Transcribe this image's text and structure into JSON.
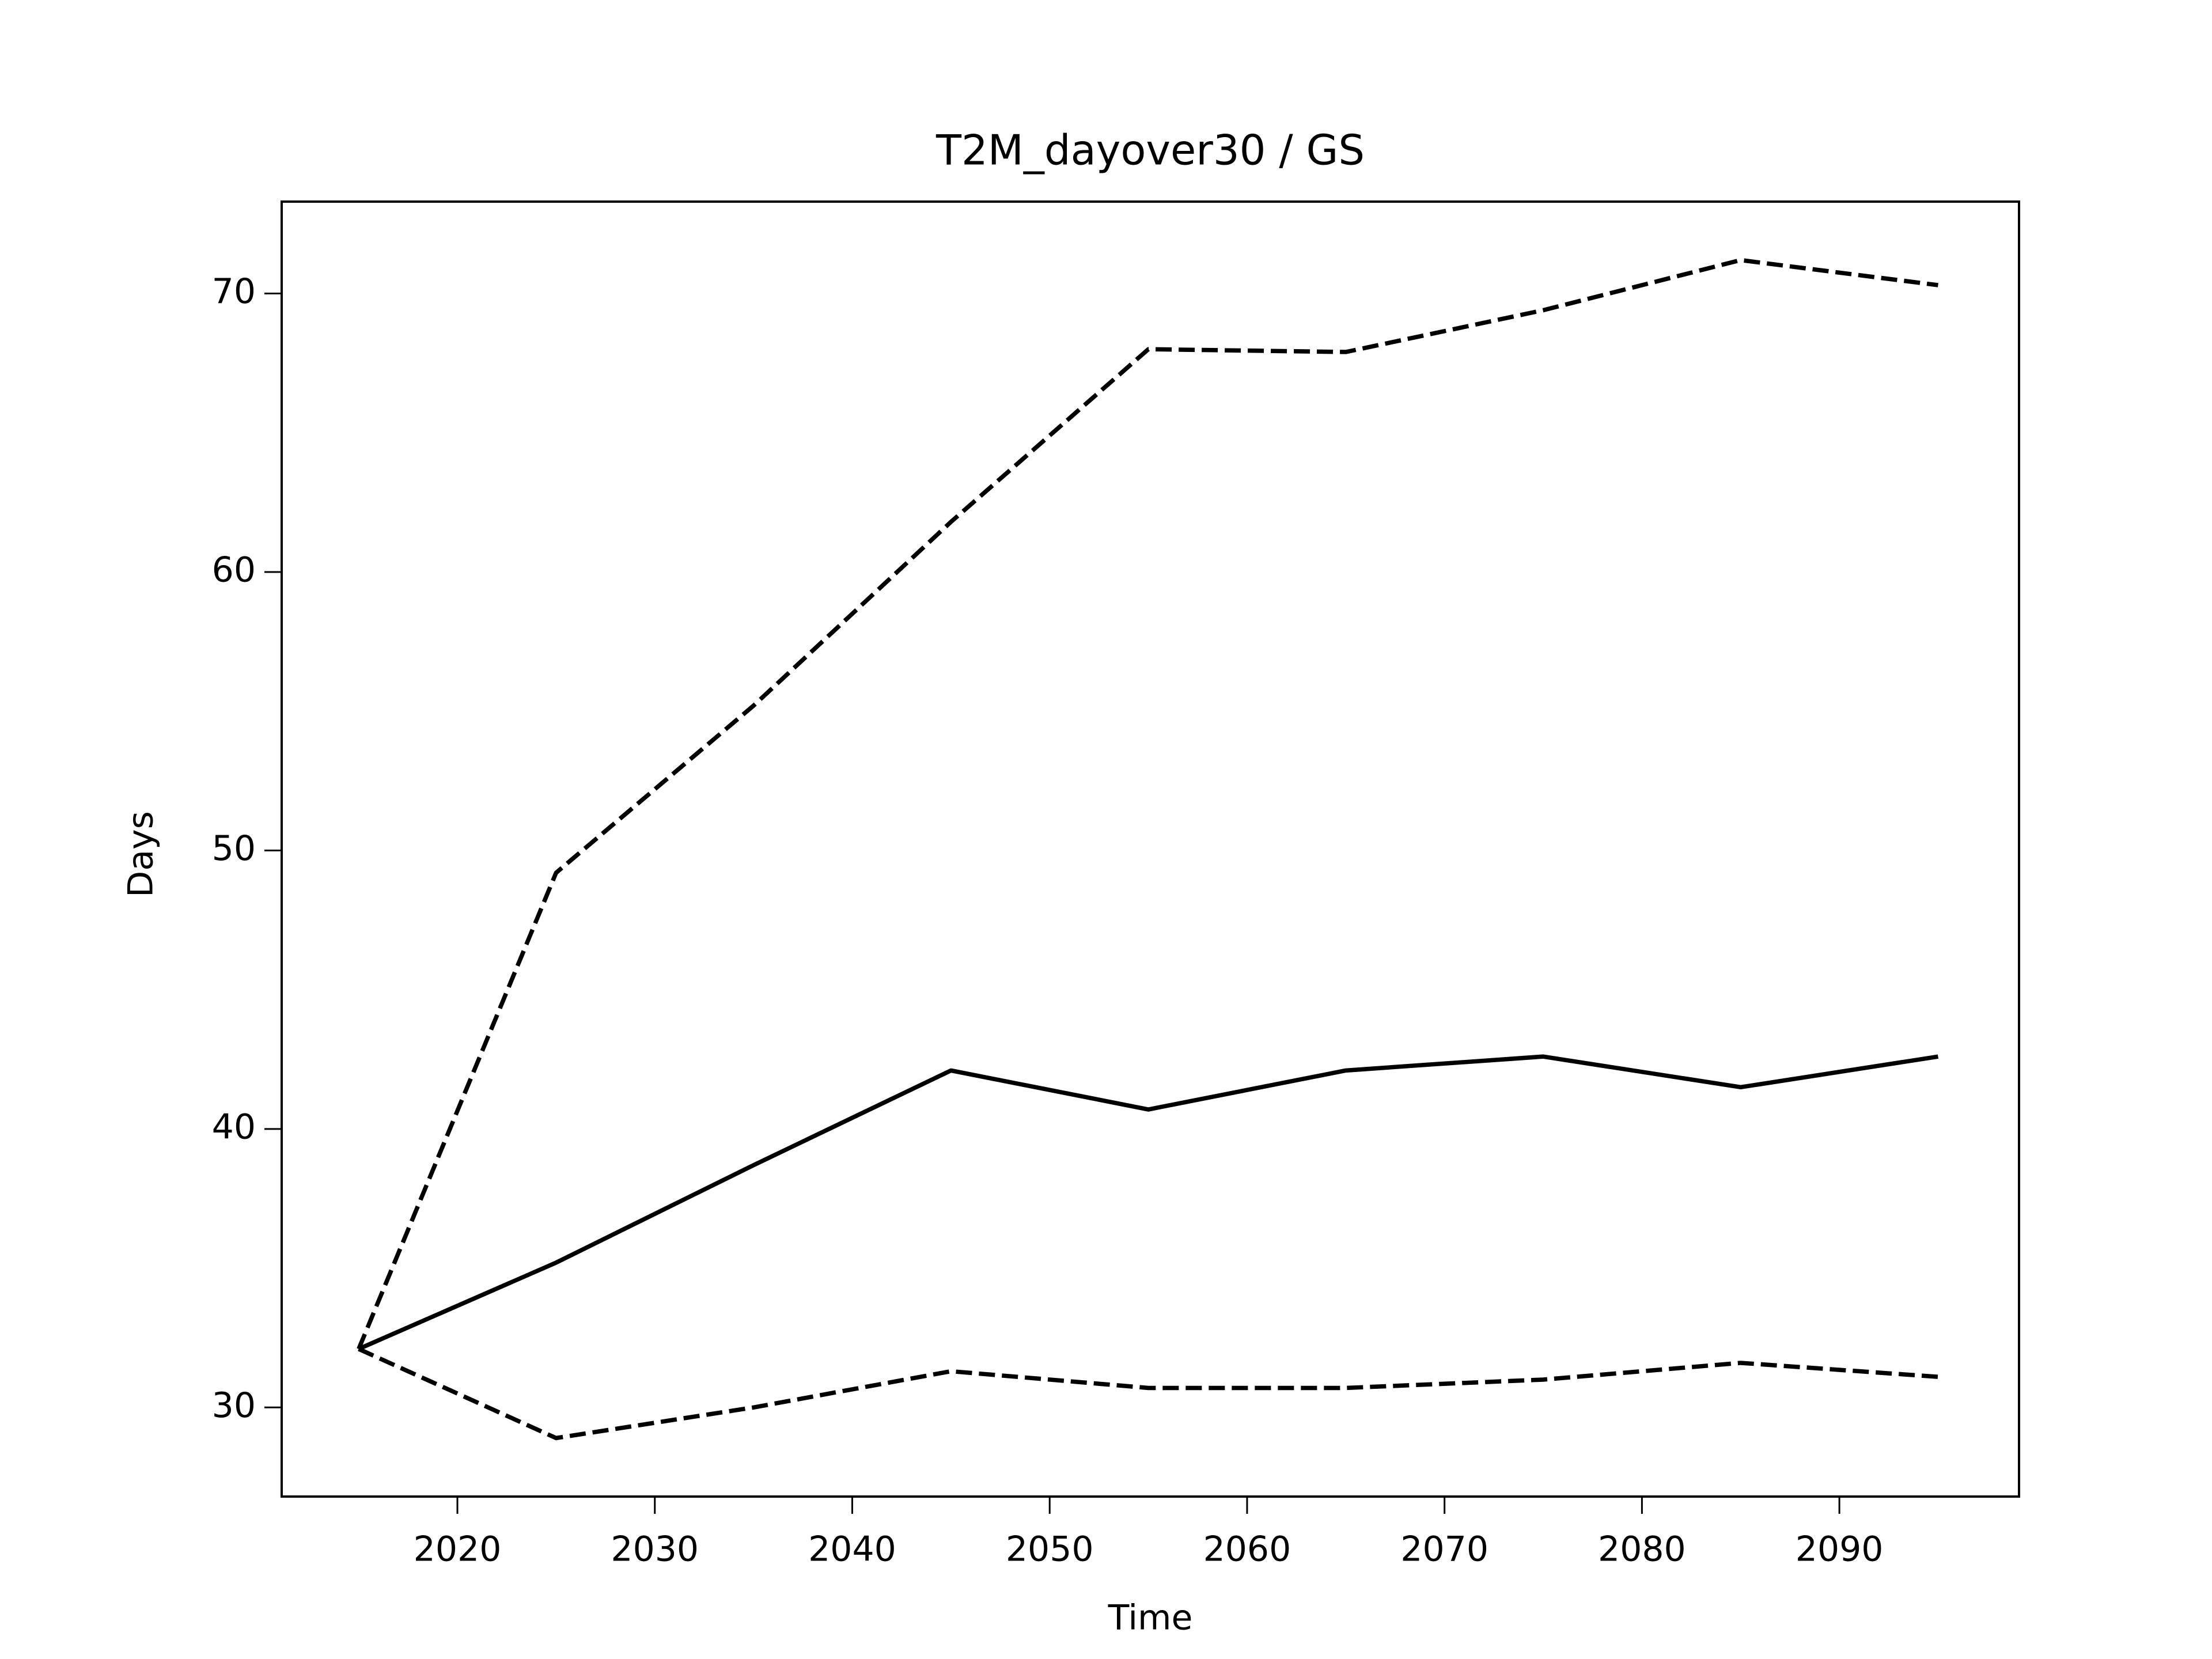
{
  "chart_data": {
    "type": "line",
    "title": "T2M_dayover30 / GS",
    "x_label": "Time",
    "y_label": "Days",
    "x": [
      2015,
      2025,
      2035,
      2045,
      2055,
      2065,
      2075,
      2085,
      2095
    ],
    "series": [
      {
        "color": "#000000",
        "linestyle": "solid",
        "values": [
          32.1,
          35.2,
          38.7,
          42.1,
          40.7,
          42.1,
          42.6,
          41.5,
          42.6
        ]
      },
      {
        "color": "#000000",
        "linestyle": "dashed",
        "values": [
          32.1,
          49.2,
          55.2,
          61.8,
          68.0,
          67.9,
          69.4,
          71.2,
          70.3
        ]
      },
      {
        "color": "#000000",
        "linestyle": "dashed",
        "values": [
          32.1,
          28.9,
          30.0,
          31.3,
          30.7,
          30.7,
          31.0,
          31.6,
          31.1
        ]
      }
    ],
    "xlim": [
      2011.1,
      2099.1
    ],
    "xticks": [
      2020,
      2030,
      2040,
      2050,
      2060,
      2070,
      2080,
      2090
    ],
    "ylim": [
      26.8,
      73.3
    ],
    "yticks": [
      30,
      40,
      50,
      60,
      70
    ],
    "grid": false
  }
}
